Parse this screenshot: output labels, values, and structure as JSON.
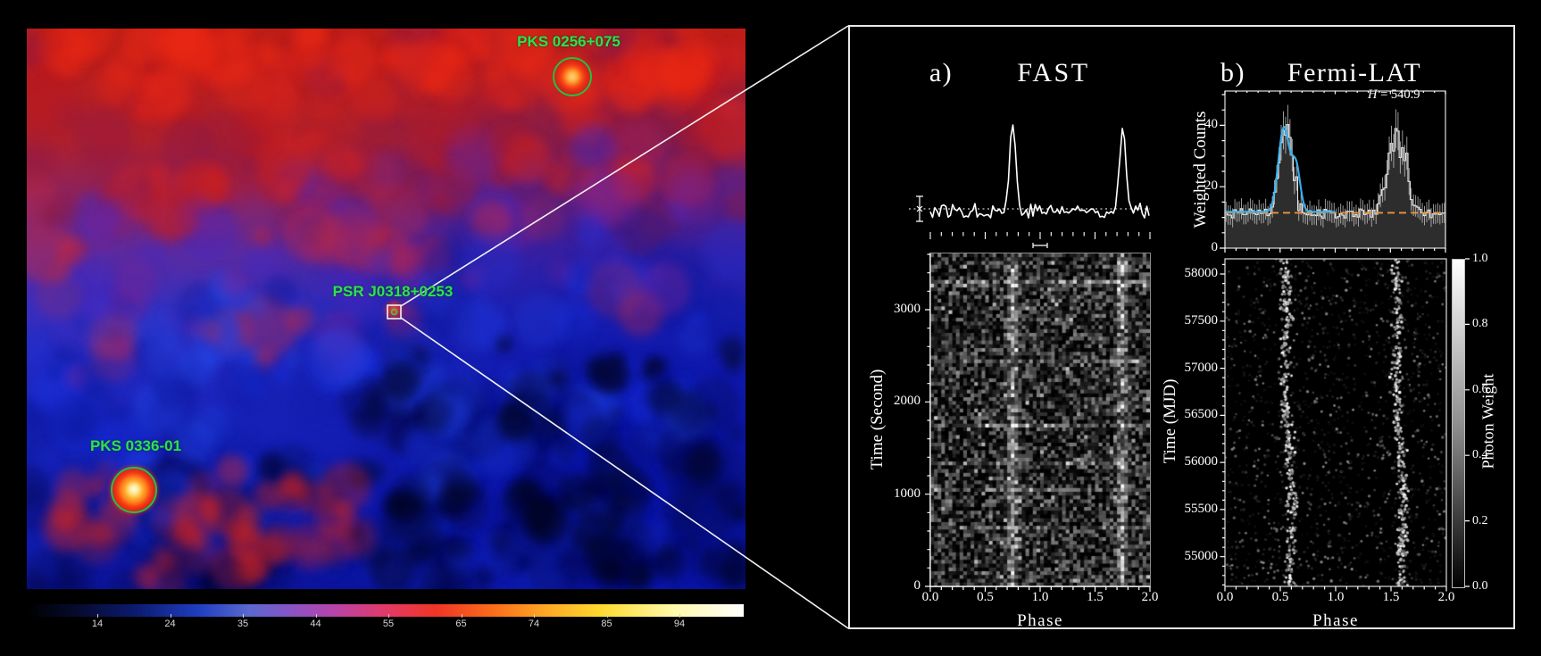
{
  "map": {
    "sources": [
      {
        "name": "PKS 0256+075",
        "marker": "green-circle"
      },
      {
        "name": "PSR J0318+0253",
        "marker": "white-box-green-circle"
      },
      {
        "name": "PKS 0336-01",
        "marker": "green-circle"
      }
    ],
    "colorbar_ticks": [
      "14",
      "24",
      "35",
      "44",
      "55",
      "65",
      "74",
      "85",
      "94"
    ],
    "label_color": "#2fe052"
  },
  "panel": {
    "a_label": "a)",
    "a_title": "FAST",
    "b_label": "b)",
    "b_title": "Fermi-LAT",
    "h_stat_name": "H",
    "h_stat_value": "= 540.9"
  },
  "chart_data": [
    {
      "id": "fast_pulse_profile",
      "type": "line",
      "instrument": "FAST",
      "x_range": [
        0,
        2
      ],
      "baseline_style": "dotted",
      "noise_rel_amplitude": 0.09,
      "peaks": [
        {
          "phase": 0.75,
          "rel_height": 1.0,
          "width": 0.028
        },
        {
          "phase": 1.75,
          "rel_height": 0.96,
          "width": 0.028
        }
      ],
      "features": [
        "left error bar",
        "phase resolution bar at phase 1.0 below profile"
      ]
    },
    {
      "id": "fast_phase_time",
      "type": "heatmap",
      "xlabel": "Phase",
      "ylabel": "Time (Second)",
      "xlim": [
        0,
        2
      ],
      "ylim": [
        0,
        3600
      ],
      "xticks": [
        "0.0",
        "0.5",
        "1.0",
        "1.5",
        "2.0"
      ],
      "yticks": [
        "0",
        "1000",
        "2000",
        "3000"
      ],
      "pulse_stripe_phases": [
        0.75,
        1.75
      ],
      "colormap": "grayscale"
    },
    {
      "id": "fermi_pulse_profile",
      "type": "histogram",
      "ylabel": "Weighted Counts",
      "ylim": [
        0,
        51
      ],
      "yticks": [
        "0",
        "20",
        "40"
      ],
      "xlim": [
        0,
        2
      ],
      "n_bins": 100,
      "background_level": 11.5,
      "peaks": [
        {
          "phase": 0.545,
          "height": 40,
          "width": 0.055
        },
        {
          "phase": 1.555,
          "height": 42,
          "width": 0.075
        }
      ],
      "fit_curve": {
        "color": "#3ab4f2",
        "phase_range": [
          0,
          1
        ],
        "baseline": 11.8,
        "components": [
          {
            "phase": 0.535,
            "amp": 27.5,
            "width": 0.05
          },
          {
            "phase": 0.645,
            "amp": 14.5,
            "width": 0.038
          }
        ]
      },
      "background_line": {
        "color": "#e8953a",
        "style": "dashed",
        "level": 11.5
      },
      "annotation": "H = 540.9"
    },
    {
      "id": "fermi_phase_time",
      "type": "scatter",
      "xlabel": "Phase",
      "ylabel": "Time (MJD)",
      "xlim": [
        0,
        2
      ],
      "ylim": [
        54690,
        58160
      ],
      "xticks": [
        "0.0",
        "0.5",
        "1.0",
        "1.5",
        "2.0"
      ],
      "yticks": [
        "55000",
        "55500",
        "56000",
        "56500",
        "57000",
        "57500",
        "58000"
      ],
      "pulse_stripe_phases": [
        0.55,
        1.55
      ],
      "colorbar": {
        "label": "Photon Weight",
        "ticks": [
          "0.0",
          "0.2",
          "0.4",
          "0.6",
          "0.8",
          "1.0"
        ],
        "range": [
          0,
          1
        ]
      }
    }
  ]
}
